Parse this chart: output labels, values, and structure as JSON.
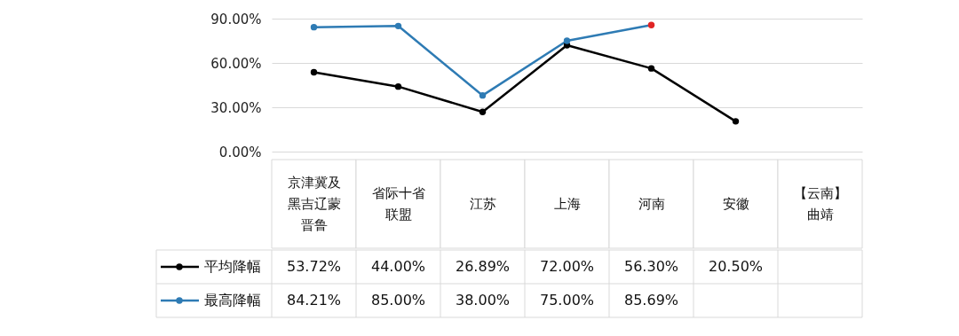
{
  "chart_data": {
    "type": "line",
    "categories": [
      "京津冀及黑吉辽蒙晋鲁",
      "省际十省联盟",
      "江苏",
      "上海",
      "河南",
      "安徽",
      "【云南】曲靖"
    ],
    "ylim": [
      0,
      90
    ],
    "yticks": [
      {
        "value": 0,
        "label": "0.00%"
      },
      {
        "value": 30,
        "label": "30.00%"
      },
      {
        "value": 60,
        "label": "60.00%"
      },
      {
        "value": 90,
        "label": "90.00%"
      }
    ],
    "grid": "y",
    "legend": "bottom left",
    "marker": "circle",
    "line_style": "solid",
    "series": [
      {
        "name": "平均降幅",
        "color": "#000000",
        "values": [
          53.72,
          44.0,
          26.89,
          72.0,
          56.3,
          20.5,
          null
        ],
        "value_labels": [
          "53.72%",
          "44.00%",
          "26.89%",
          "72.00%",
          "56.30%",
          "20.50%",
          null
        ]
      },
      {
        "name": "最高降幅",
        "color": "#2e7bb4",
        "colors": [
          "#2e7bb4",
          "#2e7bb4",
          "#2e7bb4",
          "#2e7bb4",
          "#e02424",
          "#2e7bb4",
          "#2e7bb4"
        ],
        "values": [
          84.21,
          85.0,
          38.0,
          75.0,
          85.69,
          null,
          null
        ],
        "value_labels": [
          "84.21%",
          "85.00%",
          "38.00%",
          "75.00%",
          "85.69%",
          null,
          null
        ]
      }
    ]
  }
}
